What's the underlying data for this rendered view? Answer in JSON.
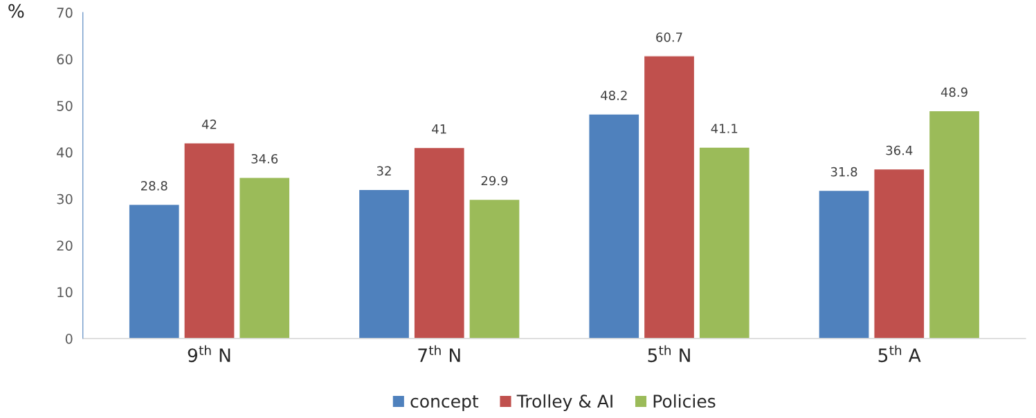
{
  "chart_data": {
    "type": "bar",
    "ylabel": "%",
    "categories": [
      "9$^{th}$ N",
      "7$^{th}$ N",
      "5$^{th}$ N",
      "5$^{th}$ A"
    ],
    "series": [
      {
        "name": "concept",
        "color": "#4f81bd",
        "values": [
          28.8,
          32,
          48.2,
          31.8
        ]
      },
      {
        "name": "Trolley & AI",
        "color": "#c0504d",
        "values": [
          42,
          41,
          60.7,
          36.4
        ]
      },
      {
        "name": "Policies",
        "color": "#9bbb59",
        "values": [
          34.6,
          29.9,
          41.1,
          48.9
        ]
      }
    ],
    "ylim": [
      0,
      70
    ],
    "yticks": [
      0,
      10,
      20,
      30,
      40,
      50,
      60,
      70
    ],
    "data_labels": true,
    "grid": false,
    "legend": "bottom"
  }
}
